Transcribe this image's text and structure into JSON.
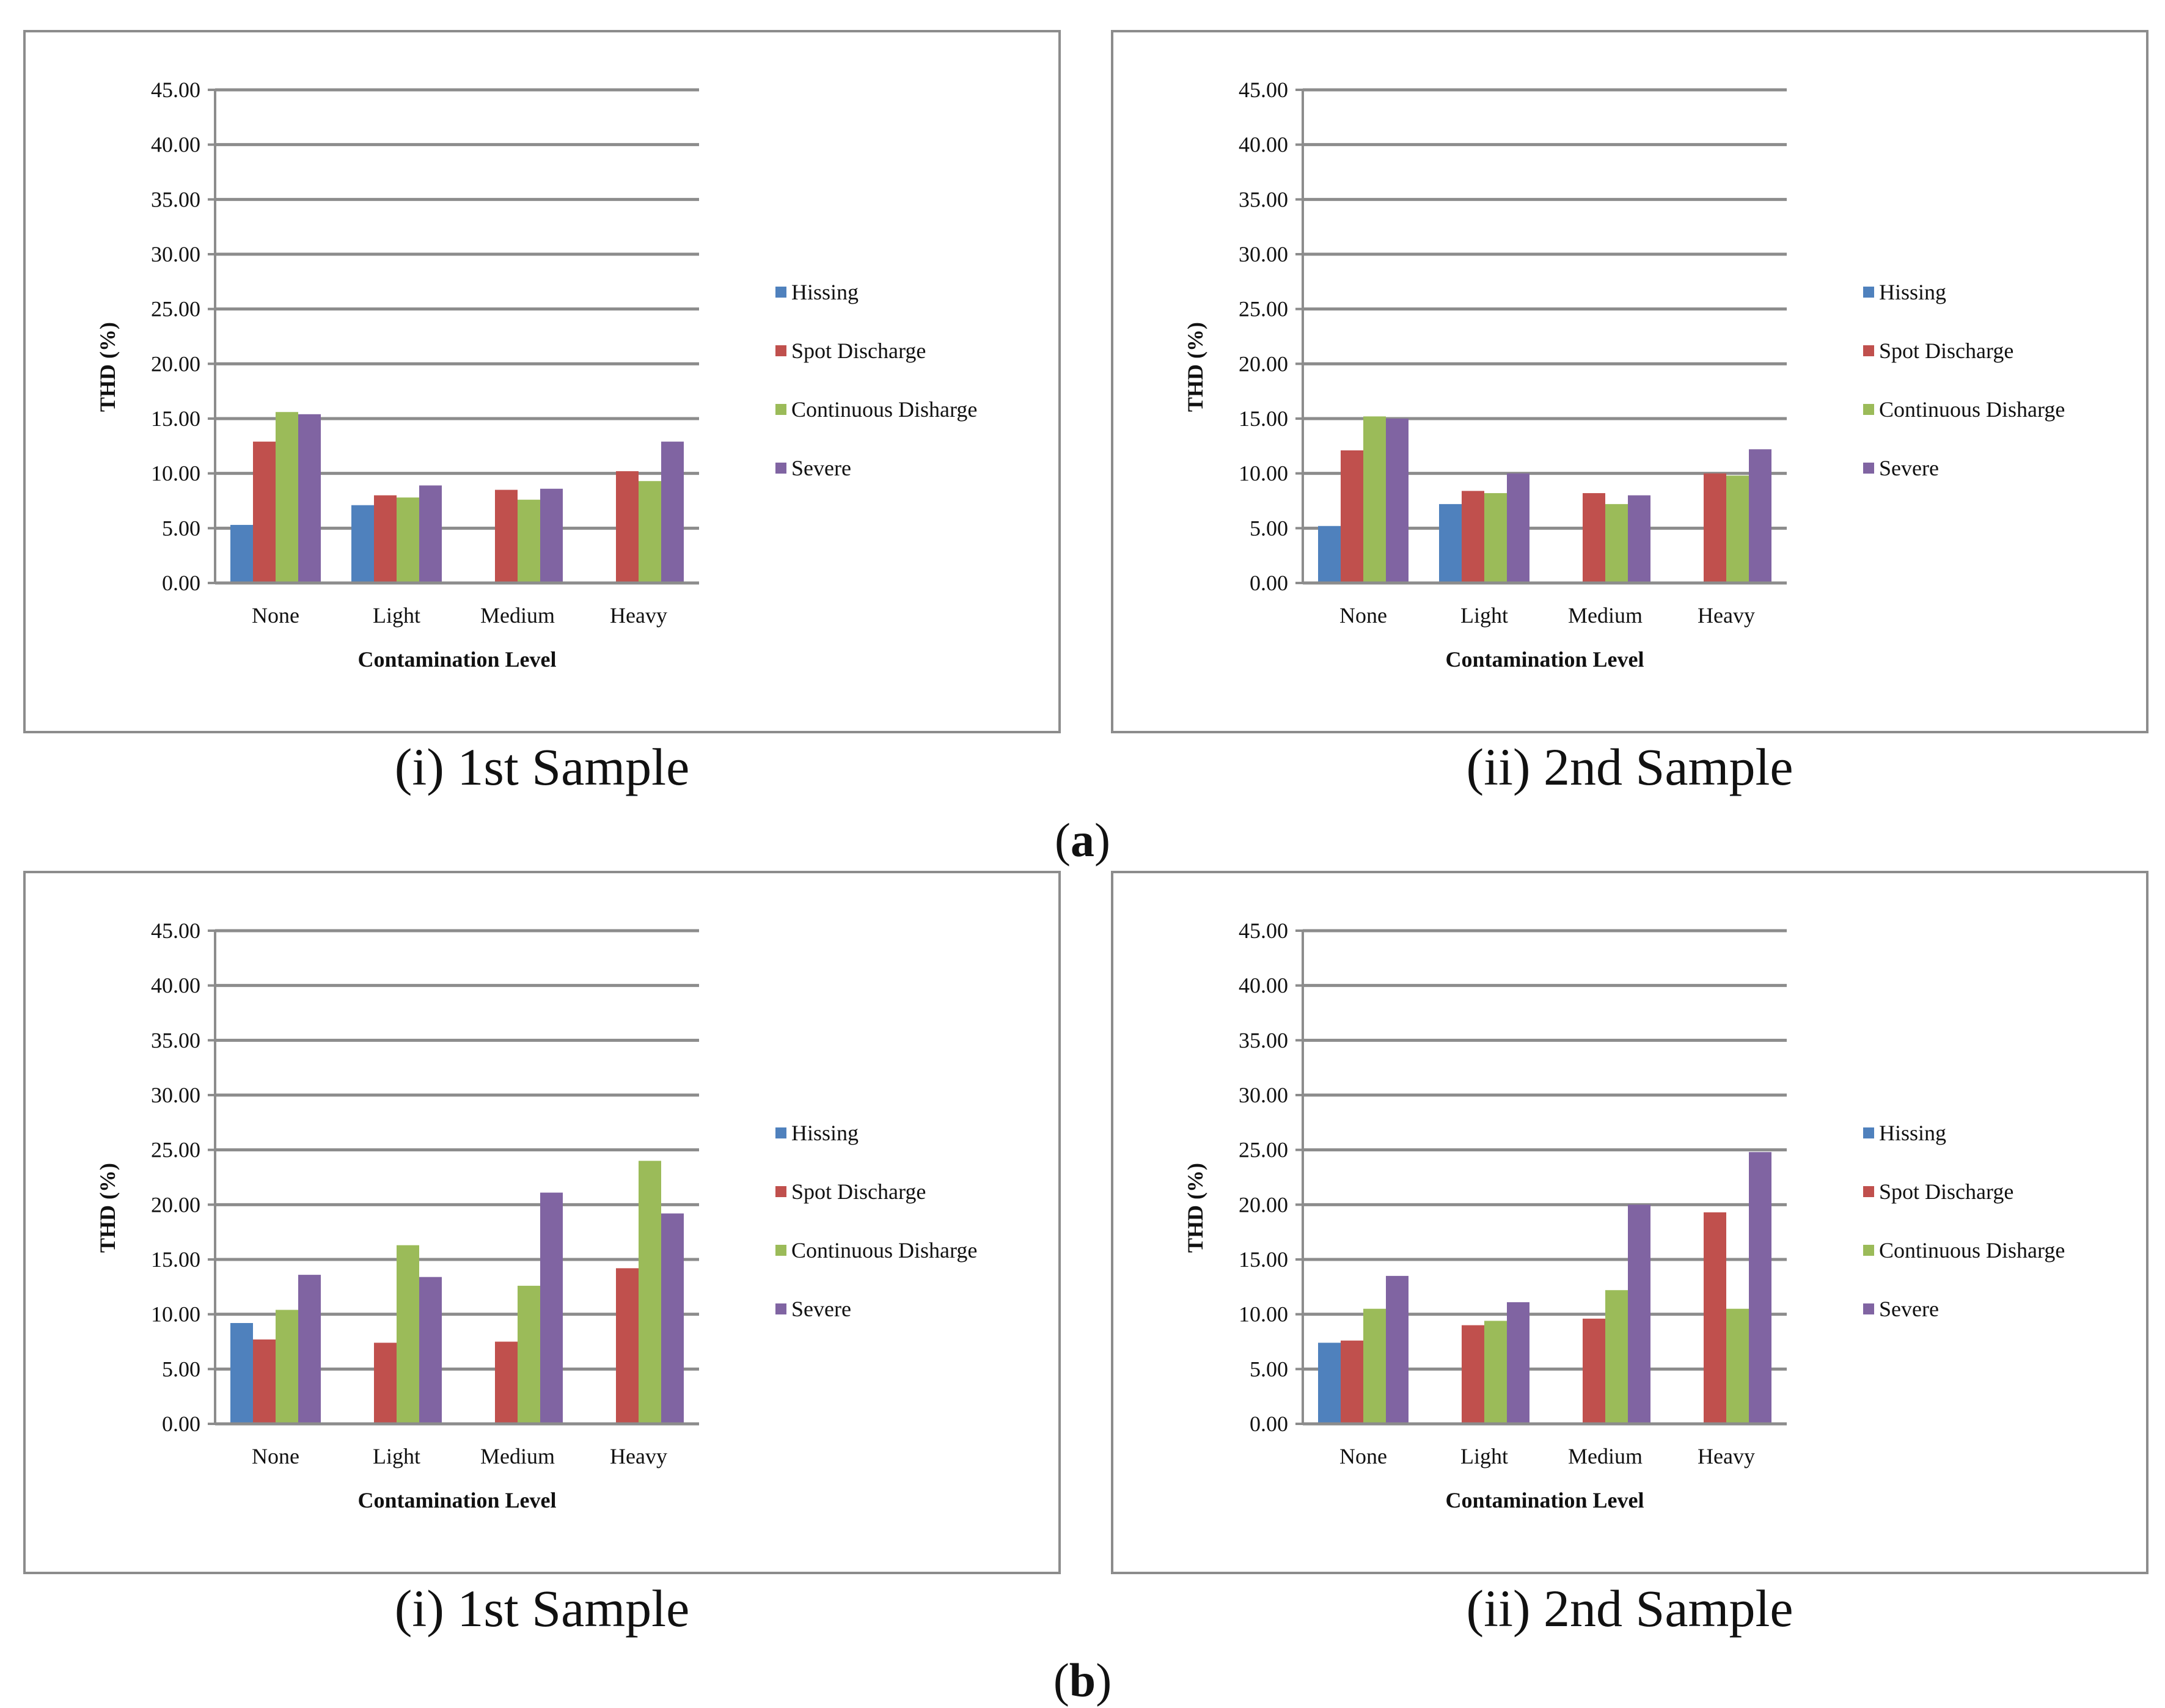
{
  "figure": {
    "part_a": {
      "open": "(",
      "letter": "a",
      "close": ")"
    },
    "part_b": {
      "open": "(",
      "letter": "b",
      "close": ")"
    }
  },
  "colors": {
    "Hissing": "#4f81bd",
    "Spot Discharge": "#c0504d",
    "Continuous Disharge": "#9bbb59",
    "Severe": "#8064a2"
  },
  "chart_data": [
    {
      "id": "a-1",
      "type": "bar",
      "caption": "(i) 1st Sample",
      "xlabel": "Contamination Level",
      "ylabel": "THD (%)",
      "ylim": [
        0,
        45
      ],
      "yticks": [
        "0.00",
        "5.00",
        "10.00",
        "15.00",
        "20.00",
        "25.00",
        "30.00",
        "35.00",
        "40.00",
        "45.00"
      ],
      "categories": [
        "None",
        "Light",
        "Medium",
        "Heavy"
      ],
      "legend_position": "right",
      "series": [
        {
          "name": "Hissing",
          "values": [
            5.3,
            7.1,
            0,
            0
          ]
        },
        {
          "name": "Spot Discharge",
          "values": [
            12.9,
            8.0,
            8.5,
            10.2
          ]
        },
        {
          "name": "Continuous Disharge",
          "values": [
            15.6,
            7.8,
            7.6,
            9.3
          ]
        },
        {
          "name": "Severe",
          "values": [
            15.4,
            8.9,
            8.6,
            12.9
          ]
        }
      ]
    },
    {
      "id": "a-2",
      "type": "bar",
      "caption": "(ii) 2nd Sample",
      "xlabel": "Contamination Level",
      "ylabel": "THD (%)",
      "ylim": [
        0,
        45
      ],
      "yticks": [
        "0.00",
        "5.00",
        "10.00",
        "15.00",
        "20.00",
        "25.00",
        "30.00",
        "35.00",
        "40.00",
        "45.00"
      ],
      "categories": [
        "None",
        "Light",
        "Medium",
        "Heavy"
      ],
      "legend_position": "right",
      "series": [
        {
          "name": "Hissing",
          "values": [
            5.2,
            7.2,
            0,
            0
          ]
        },
        {
          "name": "Spot Discharge",
          "values": [
            12.1,
            8.4,
            8.2,
            10.0
          ]
        },
        {
          "name": "Continuous Disharge",
          "values": [
            15.2,
            8.2,
            7.2,
            9.8
          ]
        },
        {
          "name": "Severe",
          "values": [
            15.0,
            10.0,
            8.0,
            12.2
          ]
        }
      ]
    },
    {
      "id": "b-1",
      "type": "bar",
      "caption": "(i) 1st Sample",
      "xlabel": "Contamination Level",
      "ylabel": "THD (%)",
      "ylim": [
        0,
        45
      ],
      "yticks": [
        "0.00",
        "5.00",
        "10.00",
        "15.00",
        "20.00",
        "25.00",
        "30.00",
        "35.00",
        "40.00",
        "45.00"
      ],
      "categories": [
        "None",
        "Light",
        "Medium",
        "Heavy"
      ],
      "legend_position": "right",
      "series": [
        {
          "name": "Hissing",
          "values": [
            9.2,
            0,
            0,
            0
          ]
        },
        {
          "name": "Spot Discharge",
          "values": [
            7.7,
            7.4,
            7.5,
            14.2
          ]
        },
        {
          "name": "Continuous Disharge",
          "values": [
            10.4,
            16.3,
            12.6,
            24.0
          ]
        },
        {
          "name": "Severe",
          "values": [
            13.6,
            13.4,
            21.1,
            19.2
          ]
        }
      ]
    },
    {
      "id": "b-2",
      "type": "bar",
      "caption": "(ii) 2nd Sample",
      "xlabel": "Contamination Level",
      "ylabel": "THD (%)",
      "ylim": [
        0,
        45
      ],
      "yticks": [
        "0.00",
        "5.00",
        "10.00",
        "15.00",
        "20.00",
        "25.00",
        "30.00",
        "35.00",
        "40.00",
        "45.00"
      ],
      "categories": [
        "None",
        "Light",
        "Medium",
        "Heavy"
      ],
      "legend_position": "right",
      "series": [
        {
          "name": "Hissing",
          "values": [
            7.4,
            0,
            0,
            0
          ]
        },
        {
          "name": "Spot Discharge",
          "values": [
            7.6,
            9.0,
            9.6,
            19.3
          ]
        },
        {
          "name": "Continuous Disharge",
          "values": [
            10.5,
            9.4,
            12.2,
            10.5
          ]
        },
        {
          "name": "Severe",
          "values": [
            13.5,
            11.1,
            20.0,
            24.8
          ]
        }
      ]
    }
  ]
}
